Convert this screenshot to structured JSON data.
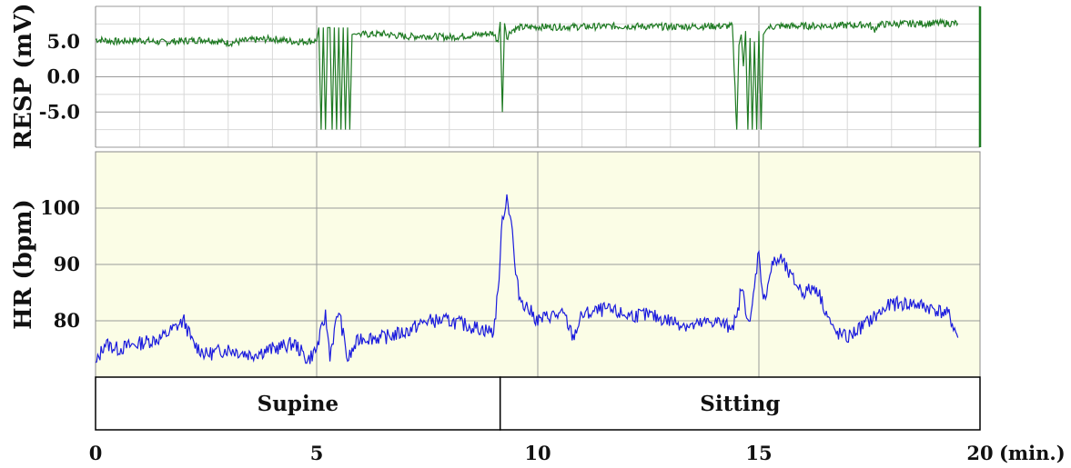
{
  "chart_data": [
    {
      "type": "line",
      "ylabel": "RESP (mV)",
      "xlim": [
        0,
        20
      ],
      "ylim": [
        -10,
        10
      ],
      "y_ticks": [
        {
          "label": "5.0",
          "value": 5
        },
        {
          "label": "0.0",
          "value": 0
        },
        {
          "label": "-5.0",
          "value": -5
        }
      ],
      "grid": true,
      "background": "#ffffff",
      "line_color": "#1e7a22",
      "x": [
        0,
        0.5,
        1,
        1.5,
        2,
        2.5,
        3,
        3.5,
        4,
        4.5,
        5,
        5.05,
        5.1,
        5.15,
        5.2,
        5.25,
        5.3,
        5.35,
        5.4,
        5.45,
        5.5,
        5.55,
        5.6,
        5.65,
        5.7,
        5.75,
        5.8,
        5.85,
        5.9,
        5.95,
        6,
        6.5,
        7,
        7.5,
        8,
        8.5,
        9,
        9.1,
        9.15,
        9.2,
        9.25,
        9.3,
        9.4,
        9.5,
        9.6,
        9.7,
        10,
        11,
        12,
        13,
        14,
        14.4,
        14.5,
        14.55,
        14.6,
        14.65,
        14.7,
        14.75,
        14.8,
        14.85,
        14.9,
        14.95,
        15,
        15.05,
        15.1,
        15.15,
        15.2,
        15.3,
        15.5,
        16,
        17,
        17.5,
        17.6,
        17.7,
        18,
        19,
        19.5
      ],
      "values": [
        5.3,
        5.0,
        5.2,
        4.9,
        5.1,
        5.3,
        4.8,
        5.2,
        5.4,
        5.0,
        5.1,
        7.0,
        -7.5,
        7.0,
        -7.5,
        7.0,
        7.0,
        -7.5,
        7.0,
        -7.5,
        7.0,
        -7.5,
        7.0,
        -7.5,
        7.0,
        -7.5,
        6.0,
        6.1,
        6.0,
        6.2,
        6.0,
        6.1,
        5.7,
        5.8,
        5.6,
        5.9,
        6.2,
        5.0,
        7.8,
        -5.0,
        7.6,
        5.6,
        6.6,
        6.8,
        7.0,
        7.0,
        7.1,
        7.1,
        7.2,
        7.1,
        7.2,
        7.2,
        -7.5,
        4.5,
        6.0,
        1.5,
        6.5,
        -7.5,
        5.5,
        -7.5,
        5.0,
        -7.5,
        6.5,
        -7.5,
        6.0,
        6.5,
        7.0,
        7.1,
        7.2,
        7.2,
        7.3,
        7.4,
        6.6,
        7.4,
        7.5,
        7.6,
        7.6
      ]
    },
    {
      "type": "line",
      "xlabel": "(min.)",
      "ylabel": "HR (bpm)",
      "xlim": [
        0,
        20
      ],
      "ylim": [
        70,
        110
      ],
      "x_ticks": [
        0,
        5,
        10,
        15,
        20
      ],
      "y_ticks": [
        80,
        90,
        100
      ],
      "grid": true,
      "background": "#fbfde6",
      "line_color": "#1a1add",
      "x": [
        0,
        0.2,
        0.5,
        1,
        1.5,
        2,
        2.2,
        2.5,
        3,
        3.5,
        4,
        4.5,
        4.8,
        5,
        5.2,
        5.3,
        5.5,
        5.7,
        5.9,
        6,
        6.5,
        7,
        7.5,
        8,
        8.5,
        9,
        9.1,
        9.2,
        9.3,
        9.4,
        9.5,
        9.6,
        9.8,
        10,
        10.3,
        10.6,
        10.8,
        11,
        11.5,
        12,
        12.5,
        13,
        13.5,
        14,
        14.3,
        14.5,
        14.6,
        14.8,
        15,
        15.1,
        15.3,
        15.5,
        15.7,
        16,
        16.3,
        16.5,
        16.7,
        17,
        17.5,
        18,
        18.5,
        19,
        19.3,
        19.5
      ],
      "values": [
        72,
        76,
        75,
        76,
        77,
        80,
        76,
        74,
        75,
        74,
        75,
        76,
        73,
        75,
        81,
        74,
        82,
        73,
        76,
        77,
        77,
        78,
        80,
        80,
        79,
        78,
        85,
        98,
        102,
        98,
        88,
        84,
        82,
        80,
        81,
        81,
        77,
        81,
        82,
        81,
        81,
        80,
        79,
        80,
        79,
        80,
        86,
        79,
        93,
        83,
        90,
        91,
        88,
        85,
        86,
        82,
        78,
        77,
        80,
        83,
        83,
        82,
        81,
        77
      ]
    }
  ],
  "phases": [
    {
      "label": "Supine",
      "start": 0,
      "end": 9.15
    },
    {
      "label": "Sitting",
      "start": 9.15,
      "end": 20
    }
  ]
}
